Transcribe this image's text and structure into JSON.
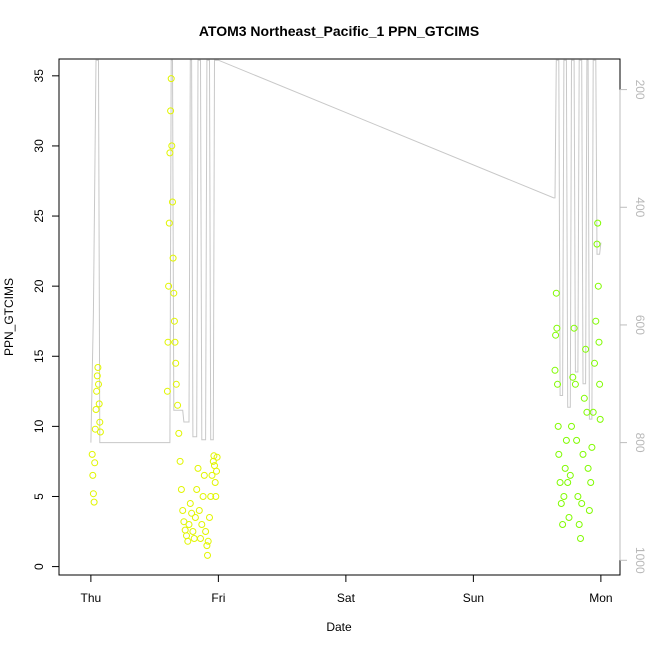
{
  "chart_data": {
    "type": "scatter",
    "title": "ATOM3 Northeast_Pacific_1 PPN_GTCIMS",
    "xlabel": "Date",
    "ylabel": "PPN_GTCIMS",
    "x_ticks": [
      "Thu",
      "Fri",
      "Sat",
      "Sun",
      "Mon"
    ],
    "x_range_days": [
      -0.25,
      4.15
    ],
    "y_range": [
      -0.6,
      36.2
    ],
    "y_ticks": [
      0,
      5,
      10,
      15,
      20,
      25,
      30,
      35
    ],
    "y2_range": [
      148,
      1025
    ],
    "y2_ticks": [
      200,
      400,
      600,
      800,
      1000
    ],
    "y2_reversed": true,
    "y2_color": "#bdbdbd",
    "grid": false,
    "legend": "none",
    "marker": "open-circle",
    "series": [
      {
        "color": "#e1f500",
        "points": [
          [
            0.01,
            8.0
          ],
          [
            0.015,
            6.5
          ],
          [
            0.02,
            5.2
          ],
          [
            0.025,
            4.6
          ],
          [
            0.03,
            7.4
          ],
          [
            0.035,
            9.8
          ],
          [
            0.04,
            11.2
          ],
          [
            0.045,
            12.5
          ],
          [
            0.05,
            13.6
          ],
          [
            0.055,
            14.2
          ],
          [
            0.06,
            13.0
          ],
          [
            0.065,
            11.6
          ],
          [
            0.07,
            10.3
          ],
          [
            0.075,
            9.6
          ],
          [
            0.6,
            12.5
          ],
          [
            0.605,
            16.0
          ],
          [
            0.61,
            20.0
          ],
          [
            0.615,
            24.5
          ],
          [
            0.62,
            29.5
          ],
          [
            0.625,
            32.5
          ],
          [
            0.63,
            34.8
          ],
          [
            0.635,
            30.0
          ],
          [
            0.64,
            26.0
          ],
          [
            0.645,
            22.0
          ],
          [
            0.65,
            19.5
          ],
          [
            0.655,
            17.5
          ],
          [
            0.66,
            16.0
          ],
          [
            0.665,
            14.5
          ],
          [
            0.67,
            13.0
          ],
          [
            0.68,
            11.5
          ],
          [
            0.69,
            9.5
          ],
          [
            0.7,
            7.5
          ],
          [
            0.71,
            5.5
          ],
          [
            0.72,
            4.0
          ],
          [
            0.73,
            3.2
          ],
          [
            0.74,
            2.6
          ],
          [
            0.75,
            2.2
          ],
          [
            0.76,
            1.8
          ],
          [
            0.77,
            3.0
          ],
          [
            0.78,
            4.5
          ],
          [
            0.79,
            3.8
          ],
          [
            0.8,
            2.5
          ],
          [
            0.81,
            2.0
          ],
          [
            0.82,
            3.5
          ],
          [
            0.83,
            5.5
          ],
          [
            0.84,
            7.0
          ],
          [
            0.85,
            4.0
          ],
          [
            0.86,
            2.0
          ],
          [
            0.87,
            3.0
          ],
          [
            0.88,
            5.0
          ],
          [
            0.89,
            6.5
          ],
          [
            0.9,
            2.5
          ],
          [
            0.91,
            1.5
          ],
          [
            0.915,
            0.8
          ],
          [
            0.92,
            1.8
          ],
          [
            0.93,
            3.5
          ],
          [
            0.94,
            5.0
          ],
          [
            0.95,
            6.5
          ],
          [
            0.96,
            7.5
          ],
          [
            0.965,
            7.9
          ],
          [
            0.97,
            7.2
          ],
          [
            0.975,
            6.0
          ],
          [
            0.98,
            5.0
          ],
          [
            0.985,
            6.8
          ],
          [
            0.99,
            7.8
          ]
        ]
      },
      {
        "color": "#80fb00",
        "points": [
          [
            3.64,
            14.0
          ],
          [
            3.645,
            16.5
          ],
          [
            3.65,
            19.5
          ],
          [
            3.655,
            17.0
          ],
          [
            3.66,
            13.0
          ],
          [
            3.665,
            10.0
          ],
          [
            3.67,
            8.0
          ],
          [
            3.68,
            6.0
          ],
          [
            3.69,
            4.5
          ],
          [
            3.7,
            3.0
          ],
          [
            3.71,
            5.0
          ],
          [
            3.72,
            7.0
          ],
          [
            3.73,
            9.0
          ],
          [
            3.74,
            6.0
          ],
          [
            3.75,
            3.5
          ],
          [
            3.76,
            6.5
          ],
          [
            3.77,
            10.0
          ],
          [
            3.78,
            13.5
          ],
          [
            3.79,
            17.0
          ],
          [
            3.8,
            13.0
          ],
          [
            3.81,
            9.0
          ],
          [
            3.82,
            5.0
          ],
          [
            3.83,
            3.0
          ],
          [
            3.84,
            2.0
          ],
          [
            3.85,
            4.5
          ],
          [
            3.86,
            8.0
          ],
          [
            3.87,
            12.0
          ],
          [
            3.88,
            15.5
          ],
          [
            3.89,
            11.0
          ],
          [
            3.9,
            7.0
          ],
          [
            3.91,
            4.0
          ],
          [
            3.92,
            6.0
          ],
          [
            3.93,
            8.5
          ],
          [
            3.94,
            11.0
          ],
          [
            3.95,
            14.5
          ],
          [
            3.96,
            17.5
          ],
          [
            3.97,
            23.0
          ],
          [
            3.975,
            24.5
          ],
          [
            3.98,
            20.0
          ],
          [
            3.985,
            16.0
          ],
          [
            3.99,
            13.0
          ],
          [
            3.995,
            10.5
          ]
        ]
      }
    ],
    "secondary_line": {
      "color": "#c8c8c8",
      "points": [
        [
          0.0,
          800
        ],
        [
          0.02,
          580
        ],
        [
          0.04,
          150
        ],
        [
          0.06,
          150
        ],
        [
          0.07,
          800
        ],
        [
          0.62,
          800
        ],
        [
          0.63,
          150
        ],
        [
          0.64,
          150
        ],
        [
          0.65,
          745
        ],
        [
          0.72,
          745
        ],
        [
          0.73,
          765
        ],
        [
          0.77,
          765
        ],
        [
          0.78,
          150
        ],
        [
          0.79,
          150
        ],
        [
          0.8,
          790
        ],
        [
          0.83,
          790
        ],
        [
          0.84,
          150
        ],
        [
          0.86,
          150
        ],
        [
          0.87,
          795
        ],
        [
          0.9,
          795
        ],
        [
          0.91,
          150
        ],
        [
          0.93,
          150
        ],
        [
          0.94,
          795
        ],
        [
          0.96,
          795
        ],
        [
          0.97,
          150
        ],
        [
          0.99,
          150
        ],
        [
          1.0,
          150
        ],
        [
          3.63,
          384
        ],
        [
          3.64,
          384
        ],
        [
          3.65,
          150
        ],
        [
          3.67,
          150
        ],
        [
          3.68,
          720
        ],
        [
          3.7,
          720
        ],
        [
          3.71,
          150
        ],
        [
          3.73,
          150
        ],
        [
          3.74,
          740
        ],
        [
          3.76,
          740
        ],
        [
          3.77,
          150
        ],
        [
          3.79,
          150
        ],
        [
          3.8,
          680
        ],
        [
          3.82,
          680
        ],
        [
          3.83,
          150
        ],
        [
          3.85,
          150
        ],
        [
          3.86,
          700
        ],
        [
          3.88,
          700
        ],
        [
          3.89,
          150
        ],
        [
          3.9,
          150
        ],
        [
          3.91,
          760
        ],
        [
          3.93,
          760
        ],
        [
          3.94,
          150
        ],
        [
          3.96,
          150
        ],
        [
          3.97,
          480
        ],
        [
          3.99,
          480
        ],
        [
          4.0,
          460
        ]
      ]
    }
  }
}
